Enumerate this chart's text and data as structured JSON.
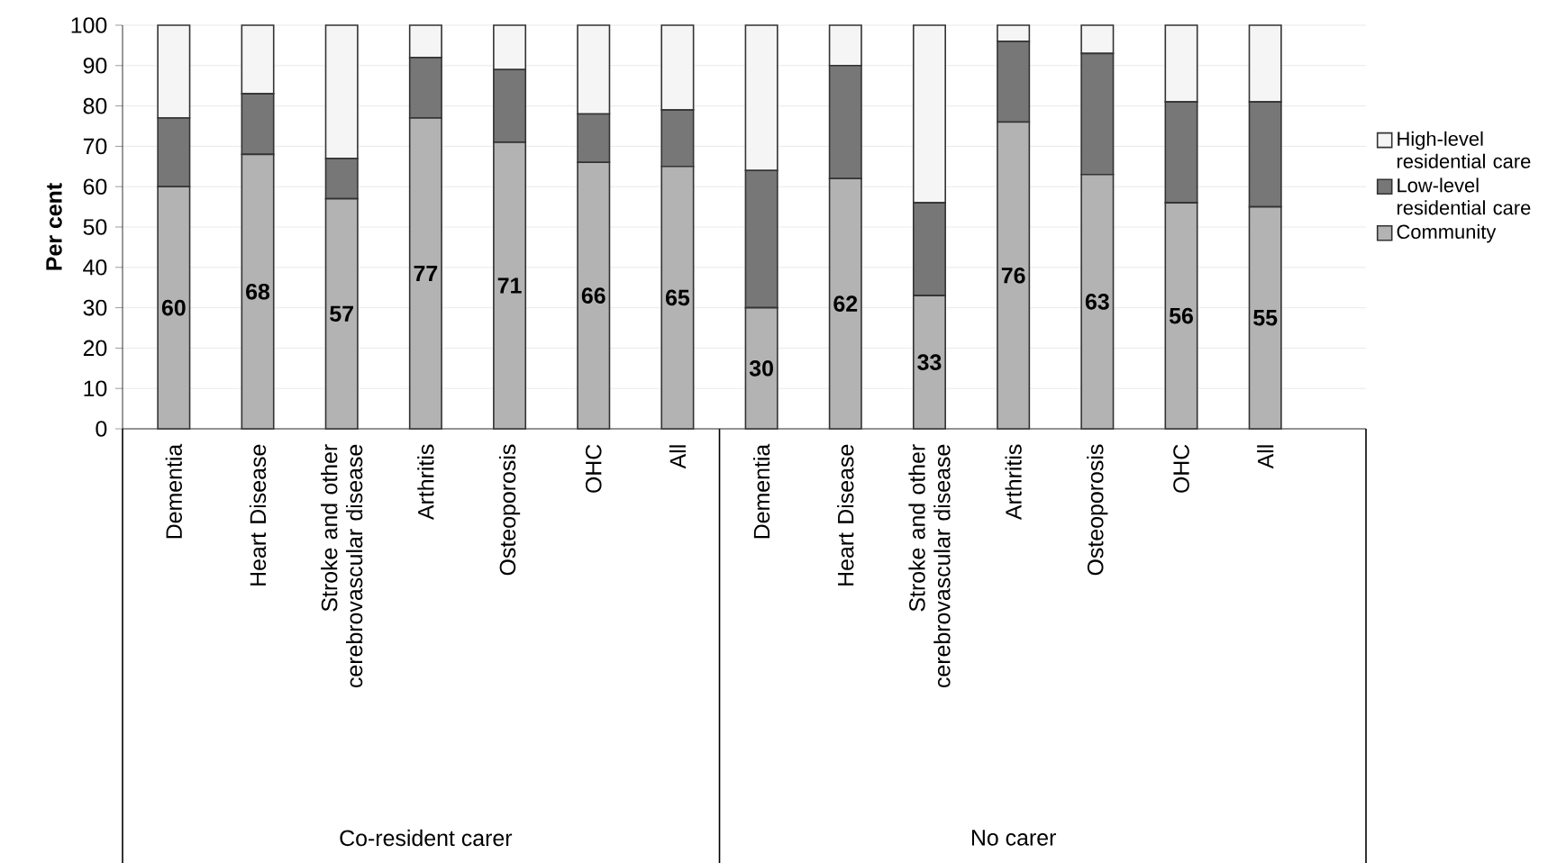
{
  "chart_data": {
    "type": "bar",
    "stacked": true,
    "ylabel": "Per cent",
    "categories": [
      "Dementia",
      "Heart Disease",
      "Stroke and other cerebrovascular disease",
      "Arthritis",
      "Osteoporosis",
      "OHC",
      "All",
      "Dementia",
      "Heart Disease",
      "Stroke and other cerebrovascular disease",
      "Arthritis",
      "Osteoporosis",
      "OHC",
      "All"
    ],
    "series": [
      {
        "name": "Community",
        "color": "#b3b3b3",
        "values": [
          60,
          68,
          57,
          77,
          71,
          66,
          65,
          30,
          62,
          33,
          76,
          63,
          56,
          55
        ],
        "value_labels": [
          "60",
          "68",
          "57",
          "77",
          "71",
          "66",
          "65",
          "30",
          "62",
          "33",
          "76",
          "63",
          "56",
          "55"
        ]
      },
      {
        "name": "Low-level residential care",
        "color": "#777777",
        "values": [
          17,
          15,
          10,
          15,
          18,
          12,
          14,
          34,
          28,
          23,
          20,
          30,
          25,
          26
        ]
      },
      {
        "name": "High-level residential care",
        "color": "#f5f5f5",
        "values": [
          23,
          17,
          33,
          8,
          11,
          22,
          21,
          36,
          10,
          44,
          4,
          7,
          19,
          19
        ]
      }
    ],
    "ylim": [
      0,
      100
    ],
    "yticks": [
      0,
      10,
      20,
      30,
      40,
      50,
      60,
      70,
      80,
      90,
      100
    ],
    "grid": "y",
    "legend": "right",
    "annotations": [
      "Co-resident carer",
      "No carer"
    ]
  }
}
